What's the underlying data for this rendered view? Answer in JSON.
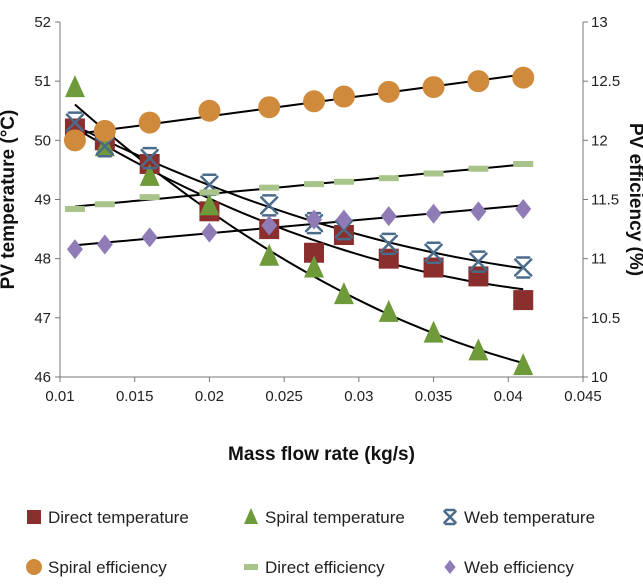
{
  "chart_data": {
    "type": "scatter",
    "xlabel": "Mass flow rate (kg/s)",
    "ylabel": "PV temperature (°C)",
    "y2label": "PV efficiency (%)",
    "xlim": [
      0.01,
      0.045
    ],
    "ylim": [
      46,
      52
    ],
    "y2lim": [
      10,
      13
    ],
    "x_ticks": [
      "0.01",
      "0.015",
      "0.02",
      "0.025",
      "0.03",
      "0.035",
      "0.04",
      "0.045"
    ],
    "y_ticks": [
      "46",
      "47",
      "48",
      "49",
      "50",
      "51",
      "52"
    ],
    "y2_ticks": [
      "10",
      "10.5",
      "11",
      "11.5",
      "12",
      "12.5",
      "13"
    ],
    "legend_position": "bottom",
    "grid": false,
    "series": [
      {
        "name": "Direct temperature",
        "axis": "left",
        "marker": "square",
        "color": "#8B2E2E",
        "x": [
          0.011,
          0.013,
          0.016,
          0.02,
          0.024,
          0.027,
          0.029,
          0.032,
          0.035,
          0.038,
          0.041
        ],
        "y": [
          50.2,
          50.0,
          49.6,
          48.8,
          48.5,
          48.1,
          48.4,
          48.0,
          47.85,
          47.7,
          47.3
        ],
        "trend": "poly"
      },
      {
        "name": "Spiral temperature",
        "axis": "left",
        "marker": "triangle",
        "color": "#6F9A3A",
        "x": [
          0.011,
          0.013,
          0.016,
          0.02,
          0.024,
          0.027,
          0.029,
          0.032,
          0.035,
          0.038,
          0.041
        ],
        "y": [
          50.9,
          49.9,
          49.4,
          48.9,
          48.05,
          47.85,
          47.4,
          47.1,
          46.75,
          46.45,
          46.2
        ],
        "trend": "poly"
      },
      {
        "name": "Web temperature",
        "axis": "left",
        "marker": "asterisk",
        "color": "#4A6C8A",
        "x": [
          0.011,
          0.013,
          0.016,
          0.02,
          0.024,
          0.027,
          0.029,
          0.032,
          0.035,
          0.038,
          0.041
        ],
        "y": [
          50.3,
          49.9,
          49.7,
          49.25,
          48.9,
          48.6,
          48.5,
          48.25,
          48.1,
          47.95,
          47.85
        ],
        "trend": "poly"
      },
      {
        "name": "Spiral efficiency",
        "axis": "right",
        "marker": "circle",
        "color": "#D08A3C",
        "x": [
          0.011,
          0.013,
          0.016,
          0.02,
          0.024,
          0.027,
          0.029,
          0.032,
          0.035,
          0.038,
          0.041
        ],
        "y": [
          12.0,
          12.08,
          12.15,
          12.25,
          12.28,
          12.33,
          12.37,
          12.41,
          12.45,
          12.5,
          12.53
        ],
        "trend": "linear"
      },
      {
        "name": "Direct efficiency",
        "axis": "right",
        "marker": "dash",
        "color": "#A8C48A",
        "x": [
          0.011,
          0.013,
          0.016,
          0.02,
          0.024,
          0.027,
          0.029,
          0.032,
          0.035,
          0.038,
          0.041
        ],
        "y": [
          11.42,
          11.46,
          11.52,
          11.56,
          11.6,
          11.63,
          11.65,
          11.68,
          11.72,
          11.76,
          11.8
        ],
        "trend": "linear"
      },
      {
        "name": "Web efficiency",
        "axis": "right",
        "marker": "diamond",
        "color": "#8F7BB5",
        "x": [
          0.011,
          0.013,
          0.016,
          0.02,
          0.024,
          0.027,
          0.029,
          0.032,
          0.035,
          0.038,
          0.041
        ],
        "y": [
          11.08,
          11.12,
          11.18,
          11.22,
          11.28,
          11.33,
          11.33,
          11.36,
          11.38,
          11.4,
          11.42
        ],
        "trend": "linear"
      }
    ]
  }
}
